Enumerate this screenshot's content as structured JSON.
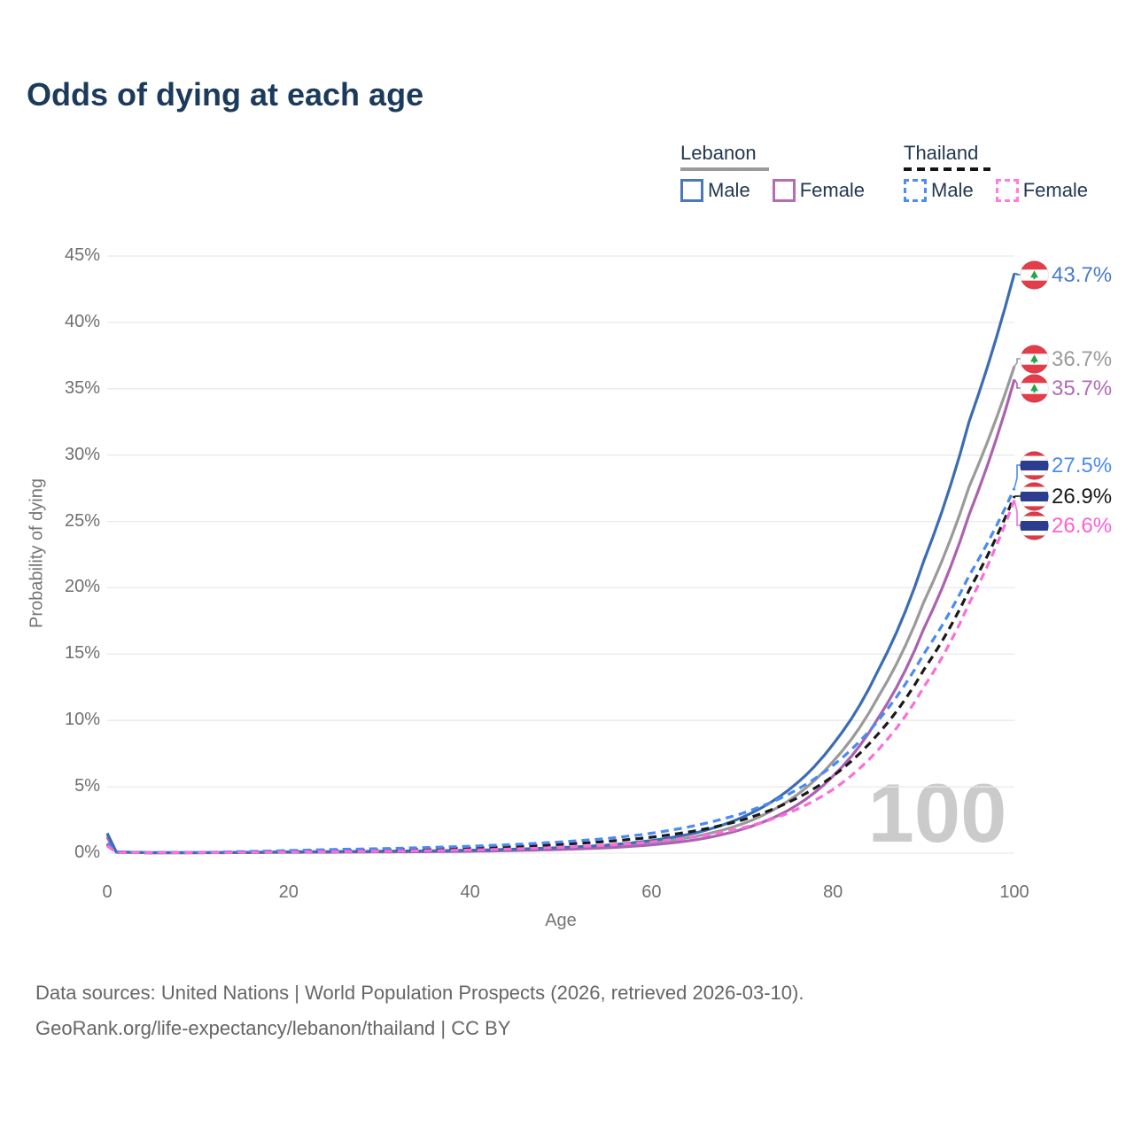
{
  "title": "Odds of dying at each age",
  "legend": {
    "groups": [
      {
        "name": "Lebanon",
        "line_style": "solid",
        "underline_color": "#9a9a9a",
        "items": [
          {
            "label": "Male",
            "color": "#4a78bb"
          },
          {
            "label": "Female",
            "color": "#b56cb3"
          }
        ]
      },
      {
        "name": "Thailand",
        "line_style": "dashed",
        "underline_color": "#141414",
        "items": [
          {
            "label": "Male",
            "color": "#4f8cf2"
          },
          {
            "label": "Female",
            "color": "#ff7ce0"
          }
        ]
      }
    ]
  },
  "watermark": "100",
  "footer": {
    "line1": "Data sources: United Nations | World Population Prospects (2026, retrieved 2026-03-10).",
    "line2": "GeoRank.org/life-expectancy/lebanon/thailand | CC BY"
  },
  "chart_data": {
    "type": "line",
    "title": "Odds of dying at each age",
    "xlabel": "Age",
    "ylabel": "Probability of dying",
    "xlim": [
      0,
      100
    ],
    "ylim_percent": [
      0,
      45
    ],
    "grid": "horizontal",
    "legend_position": "top-right",
    "x_ticks": [
      "0",
      "20",
      "40",
      "60",
      "80",
      "100"
    ],
    "y_ticks": [
      "0%",
      "5%",
      "10%",
      "15%",
      "20%",
      "25%",
      "30%",
      "35%",
      "40%",
      "45%"
    ],
    "ages": [
      0,
      1,
      5,
      10,
      15,
      20,
      25,
      30,
      35,
      40,
      45,
      50,
      55,
      60,
      65,
      70,
      75,
      80,
      85,
      90,
      95,
      100
    ],
    "series": [
      {
        "name": "Lebanon Male",
        "country": "Lebanon",
        "flag": "lebanon",
        "color": "#3b6cb4",
        "label_color": "#4a7cc4",
        "dash": false,
        "end_label": "43.7%",
        "end_value": 43.7,
        "values": [
          1.5,
          0.1,
          0.04,
          0.04,
          0.06,
          0.1,
          0.12,
          0.14,
          0.17,
          0.22,
          0.3,
          0.42,
          0.6,
          0.95,
          1.55,
          2.7,
          4.7,
          8.2,
          13.8,
          22.0,
          32.5,
          43.7
        ]
      },
      {
        "name": "Lebanon (both sexes)",
        "country": "Lebanon",
        "flag": "lebanon",
        "color": "#9a9a9a",
        "label_color": "#9b9b9b",
        "dash": false,
        "end_label": "36.7%",
        "end_value": 36.7,
        "values": [
          1.35,
          0.09,
          0.035,
          0.035,
          0.05,
          0.08,
          0.1,
          0.12,
          0.14,
          0.18,
          0.25,
          0.35,
          0.5,
          0.78,
          1.28,
          2.2,
          3.9,
          6.9,
          11.8,
          18.9,
          27.6,
          36.7
        ]
      },
      {
        "name": "Lebanon Female",
        "country": "Lebanon",
        "flag": "lebanon",
        "color": "#ab62b0",
        "label_color": "#b06cb5",
        "dash": false,
        "end_label": "35.7%",
        "end_value": 35.7,
        "values": [
          1.2,
          0.08,
          0.03,
          0.03,
          0.04,
          0.06,
          0.07,
          0.09,
          0.11,
          0.14,
          0.2,
          0.28,
          0.4,
          0.62,
          1.02,
          1.8,
          3.2,
          5.8,
          10.2,
          16.9,
          25.5,
          35.7
        ]
      },
      {
        "name": "Thailand Male",
        "country": "Thailand",
        "flag": "thailand",
        "color": "#4b8af2",
        "label_color": "#4b8af2",
        "dash": true,
        "end_label": "27.5%",
        "end_value": 27.5,
        "values": [
          0.75,
          0.06,
          0.04,
          0.06,
          0.12,
          0.2,
          0.28,
          0.34,
          0.42,
          0.52,
          0.66,
          0.85,
          1.1,
          1.5,
          2.1,
          3.0,
          4.4,
          6.6,
          10.0,
          15.0,
          20.9,
          27.5
        ]
      },
      {
        "name": "Thailand (both sexes)",
        "country": "Thailand",
        "flag": "thailand",
        "color": "#1a1a1a",
        "label_color": "#1a1a1a",
        "dash": true,
        "end_label": "26.9%",
        "end_value": 26.9,
        "values": [
          0.65,
          0.05,
          0.03,
          0.05,
          0.09,
          0.15,
          0.2,
          0.25,
          0.31,
          0.39,
          0.5,
          0.66,
          0.88,
          1.2,
          1.7,
          2.5,
          3.8,
          5.8,
          9.0,
          13.8,
          19.8,
          26.9
        ]
      },
      {
        "name": "Thailand Female",
        "country": "Thailand",
        "flag": "thailand",
        "color": "#fa6ed8",
        "label_color": "#fb5fd4",
        "dash": true,
        "end_label": "26.6%",
        "end_value": 26.6,
        "values": [
          0.55,
          0.045,
          0.025,
          0.035,
          0.05,
          0.08,
          0.11,
          0.14,
          0.18,
          0.24,
          0.32,
          0.44,
          0.6,
          0.85,
          1.25,
          1.9,
          3.0,
          4.8,
          7.8,
          12.5,
          18.8,
          26.6
        ]
      }
    ]
  }
}
